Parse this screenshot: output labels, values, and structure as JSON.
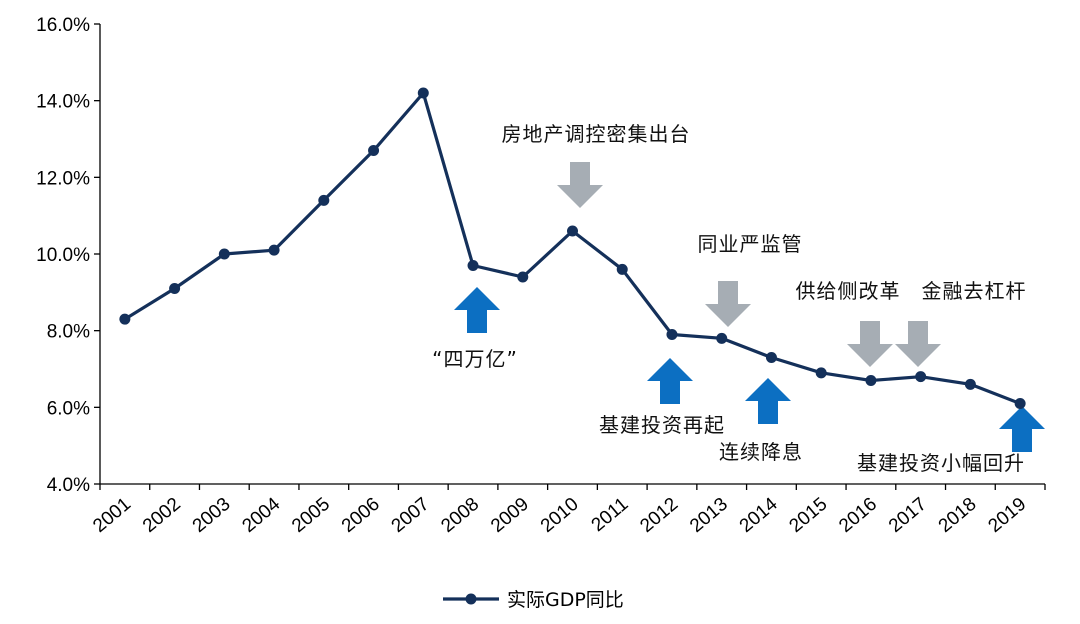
{
  "chart_data": {
    "type": "line",
    "title": "",
    "xlabel": "",
    "ylabel": "",
    "x": [
      "2001",
      "2002",
      "2003",
      "2004",
      "2005",
      "2006",
      "2007",
      "2008",
      "2009",
      "2010",
      "2011",
      "2012",
      "2013",
      "2014",
      "2015",
      "2016",
      "2017",
      "2018",
      "2019"
    ],
    "series": [
      {
        "name": "实际GDP同比",
        "values": [
          8.3,
          9.1,
          10.0,
          10.1,
          11.4,
          12.7,
          14.2,
          9.7,
          9.4,
          10.6,
          9.6,
          7.9,
          7.8,
          7.3,
          6.9,
          6.7,
          6.8,
          6.6,
          6.1
        ]
      }
    ],
    "ylim": [
      4.0,
      16.0
    ],
    "yticks": [
      "4.0%",
      "6.0%",
      "8.0%",
      "10.0%",
      "12.0%",
      "14.0%",
      "16.0%"
    ],
    "ytick_values": [
      4,
      6,
      8,
      10,
      12,
      14,
      16
    ],
    "grid": false,
    "legend_position": "bottom-center",
    "line_color": "#14305a",
    "annotations": [
      {
        "text": "“四万亿”",
        "year": "2008",
        "arrow": "up",
        "color": "#0c6fc2"
      },
      {
        "text": "房地产调控密集出台",
        "year": "2010",
        "arrow": "down",
        "color": "#a6adb4"
      },
      {
        "text": "基建投资再起",
        "year": "2012",
        "arrow": "up",
        "color": "#0c6fc2"
      },
      {
        "text": "同业严监管",
        "year": "2013",
        "arrow": "down",
        "color": "#a6adb4"
      },
      {
        "text": "连续降息",
        "year": "2014",
        "arrow": "up",
        "color": "#0c6fc2"
      },
      {
        "text": "供给侧改革",
        "year": "2016",
        "arrow": "down",
        "color": "#a6adb4"
      },
      {
        "text": "金融去杠杆",
        "year": "2017",
        "arrow": "down",
        "color": "#a6adb4"
      },
      {
        "text": "基建投资小幅回升",
        "year": "2019",
        "arrow": "up",
        "color": "#0c6fc2"
      }
    ]
  }
}
